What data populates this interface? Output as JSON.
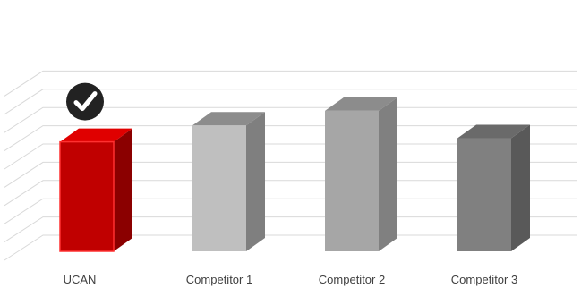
{
  "chart_data": {
    "type": "bar",
    "style": "3d-column",
    "categories": [
      "UCAN",
      "Competitor 1",
      "Competitor 2",
      "Competitor 3"
    ],
    "values": [
      6,
      6.9,
      7.7,
      6.2
    ],
    "ylim": [
      0,
      9
    ],
    "grid": true,
    "legend": "none",
    "title": "",
    "xlabel": "",
    "ylabel": "",
    "colors": {
      "UCAN": {
        "front": "#c00000",
        "side": "#8b0000",
        "top": "#e00000",
        "outline": "#ff3030"
      },
      "Competitor 1": {
        "front": "#bfbfbf",
        "side": "#7f7f7f",
        "top": "#8c8c8c"
      },
      "Competitor 2": {
        "front": "#a6a6a6",
        "side": "#808080",
        "top": "#8c8c8c"
      },
      "Competitor 3": {
        "front": "#808080",
        "side": "#595959",
        "top": "#6a6a6a"
      }
    },
    "gridline_color": "#d9d9d9",
    "highlight_icon": "checkmark-circle-icon",
    "highlight_category": "UCAN"
  }
}
